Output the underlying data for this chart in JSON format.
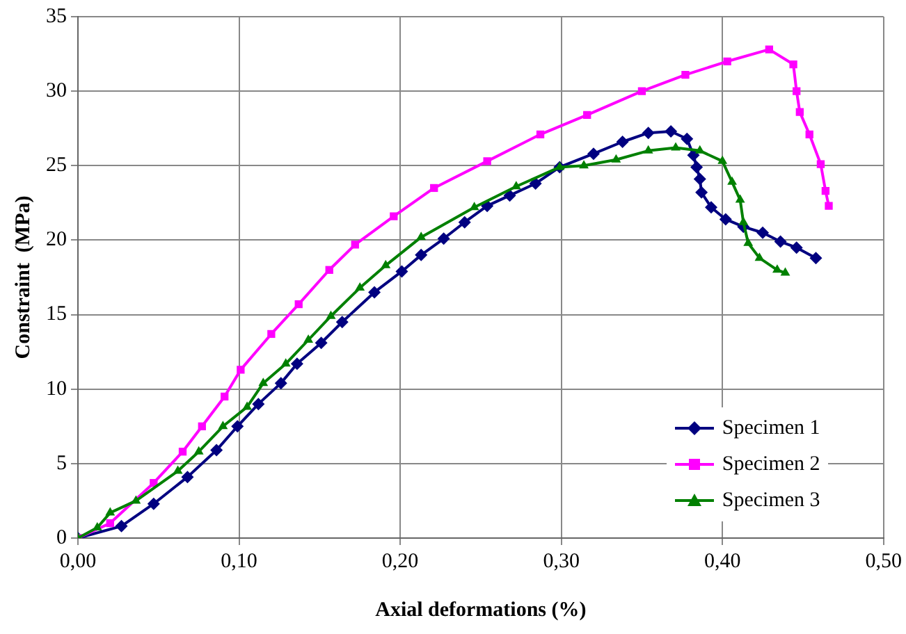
{
  "chart_data": {
    "type": "line",
    "xlabel": "Axial deformations (%)",
    "ylabel": "Constraint  (MPa)",
    "xlim": [
      0,
      0.5
    ],
    "ylim": [
      0,
      35
    ],
    "xticks": [
      {
        "value": 0,
        "label": "0,00"
      },
      {
        "value": 0.1,
        "label": "0,10"
      },
      {
        "value": 0.2,
        "label": "0,20"
      },
      {
        "value": 0.3,
        "label": "0,30"
      },
      {
        "value": 0.4,
        "label": "0,40"
      },
      {
        "value": 0.5,
        "label": "0,50"
      }
    ],
    "yticks": [
      0,
      5,
      10,
      15,
      20,
      25,
      30,
      35
    ],
    "grid": true,
    "legend": "bottom right",
    "line_style": "solid",
    "series": [
      {
        "name": "Specimen 1",
        "color": "#000080",
        "marker": "diamond",
        "x": [
          0,
          0.027,
          0.047,
          0.068,
          0.086,
          0.099,
          0.112,
          0.126,
          0.136,
          0.151,
          0.164,
          0.184,
          0.201,
          0.213,
          0.227,
          0.24,
          0.254,
          0.268,
          0.284,
          0.299,
          0.32,
          0.338,
          0.354,
          0.368,
          0.378,
          0.382,
          0.384,
          0.386,
          0.387,
          0.393,
          0.402,
          0.413,
          0.425,
          0.436,
          0.446,
          0.458
        ],
        "values": [
          0,
          0.8,
          2.3,
          4.1,
          5.9,
          7.5,
          9.0,
          10.4,
          11.7,
          13.1,
          14.5,
          16.5,
          17.9,
          19.0,
          20.1,
          21.2,
          22.3,
          23.0,
          23.8,
          24.9,
          25.8,
          26.6,
          27.2,
          27.3,
          26.8,
          25.7,
          24.9,
          24.1,
          23.2,
          22.2,
          21.4,
          20.9,
          20.5,
          19.9,
          19.5,
          18.8
        ]
      },
      {
        "name": "Specimen 2",
        "color": "#ff00ff",
        "marker": "square",
        "x": [
          0,
          0.02,
          0.047,
          0.065,
          0.077,
          0.091,
          0.101,
          0.12,
          0.137,
          0.156,
          0.172,
          0.196,
          0.221,
          0.254,
          0.287,
          0.316,
          0.35,
          0.377,
          0.403,
          0.429,
          0.444,
          0.446,
          0.448,
          0.454,
          0.461,
          0.464,
          0.466
        ],
        "values": [
          0,
          1.0,
          3.7,
          5.8,
          7.5,
          9.5,
          11.3,
          13.7,
          15.7,
          18.0,
          19.7,
          21.6,
          23.5,
          25.3,
          27.1,
          28.4,
          30.0,
          31.1,
          32.0,
          32.8,
          31.8,
          30.0,
          28.6,
          27.1,
          25.1,
          23.3,
          22.3
        ]
      },
      {
        "name": "Specimen 3",
        "color": "#008000",
        "marker": "triangle",
        "x": [
          0,
          0.012,
          0.02,
          0.036,
          0.062,
          0.075,
          0.09,
          0.105,
          0.115,
          0.129,
          0.143,
          0.157,
          0.175,
          0.191,
          0.213,
          0.246,
          0.272,
          0.299,
          0.314,
          0.334,
          0.354,
          0.371,
          0.386,
          0.4,
          0.406,
          0.411,
          0.413,
          0.416,
          0.423,
          0.434,
          0.439
        ],
        "values": [
          0,
          0.7,
          1.7,
          2.5,
          4.5,
          5.8,
          7.5,
          8.8,
          10.4,
          11.7,
          13.3,
          14.9,
          16.8,
          18.3,
          20.2,
          22.2,
          23.6,
          24.9,
          25.0,
          25.4,
          26.0,
          26.2,
          26.0,
          25.3,
          23.9,
          22.7,
          21.2,
          19.8,
          18.8,
          18.0,
          17.8
        ]
      }
    ]
  }
}
